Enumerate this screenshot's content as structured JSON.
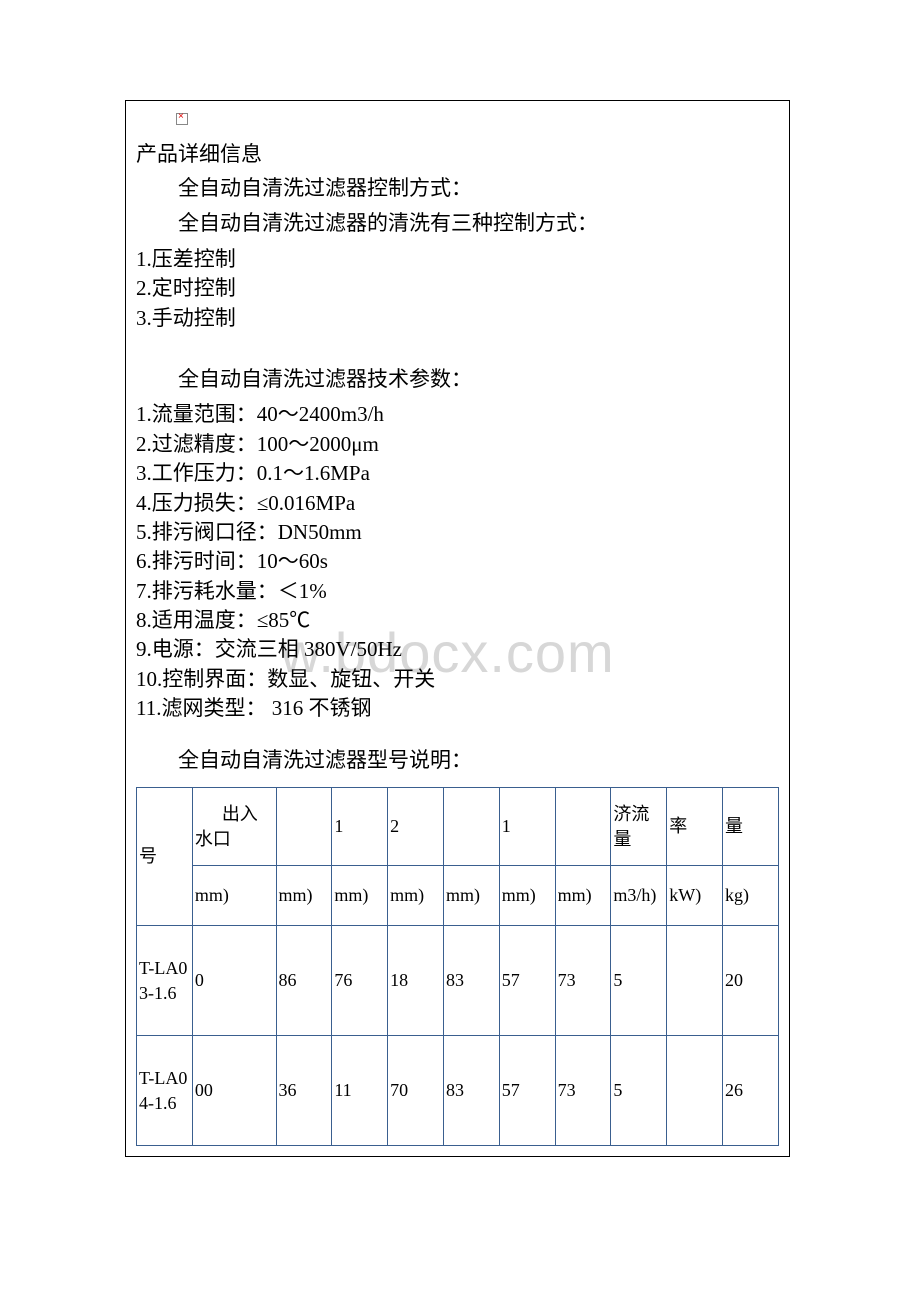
{
  "title": "产品详细信息",
  "section_control_heading": "全自动自清洗过滤器控制方式：",
  "section_control_intro": "全自动自清洗过滤器的清洗有三种控制方式：",
  "control_modes": [
    "1.压差控制",
    "2.定时控制",
    "3.手动控制"
  ],
  "section_params_heading": "全自动自清洗过滤器技术参数：",
  "params": [
    "1.流量范围：40～2400m3/h",
    "2.过滤精度：100～2000μm",
    "3.工作压力：0.1～1.6MPa",
    "4.压力损失：≤0.016MPa",
    "5.排污阀口径：DN50mm",
    "6.排污时间：10～60s",
    "7.排污耗水量：＜1%",
    "8.适用温度：≤85℃",
    "9.电源：交流三相 380V/50Hz",
    "10.控制界面：数显、旋钮、开关",
    "11.滤网类型： 316 不锈钢"
  ],
  "section_model_heading": "全自动自清洗过滤器型号说明：",
  "watermark_text": "w.bdocx.com",
  "table": {
    "headers_row1": [
      "号",
      "出入水口",
      "",
      "1",
      "2",
      "",
      "1",
      "",
      "济流量",
      "率",
      "量"
    ],
    "headers_row2": [
      "",
      "mm)",
      "mm)",
      "mm)",
      "mm)",
      "mm)",
      "mm)",
      "mm)",
      "m3/h)",
      "kW)",
      "kg)"
    ],
    "rows": [
      {
        "model": "T-LA03-1.6",
        "cells": [
          "0",
          "86",
          "76",
          "18",
          "83",
          "57",
          "73",
          "5",
          "",
          "20"
        ]
      },
      {
        "model": "T-LA04-1.6",
        "cells": [
          "00",
          "36",
          "11",
          "70",
          "83",
          "57",
          "73",
          "5",
          "",
          "26"
        ]
      }
    ],
    "border_color": "#3a5f8f"
  }
}
